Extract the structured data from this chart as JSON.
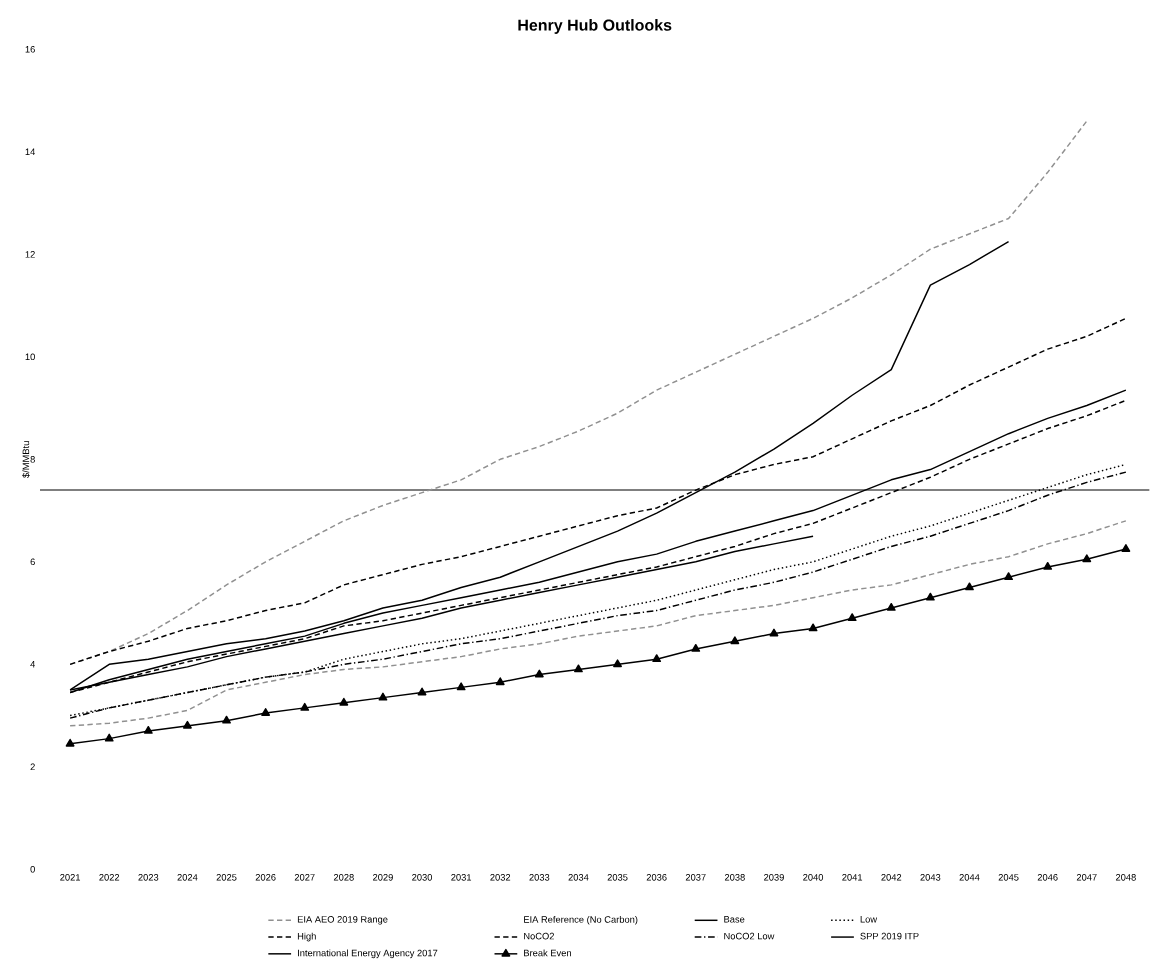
{
  "chart_data": {
    "type": "line",
    "title": "Henry Hub Outlooks",
    "ylabel": "$/MMBtu",
    "categories": [
      "2021",
      "2022",
      "2023",
      "2024",
      "2025",
      "2026",
      "2027",
      "2028",
      "2029",
      "2030",
      "2031",
      "2032",
      "2033",
      "2034",
      "2035",
      "2036",
      "2037",
      "2038",
      "2039",
      "2040",
      "2041",
      "2042",
      "2043",
      "2044",
      "2045",
      "2046",
      "2047",
      "2048"
    ],
    "ylim": [
      0,
      16
    ],
    "yticks": [
      0,
      2,
      4,
      6,
      8,
      10,
      12,
      14,
      16
    ],
    "grid": false,
    "legend": "bottom",
    "marker": "none",
    "ref_lines": [
      {
        "axis": "y",
        "value": 7.4,
        "color": "#000000"
      }
    ],
    "series": [
      {
        "name": "EIA AEO 2019 Range",
        "color": "#909090",
        "line_style": "dashed",
        "values": [
          4.0,
          4.25,
          4.6,
          5.05,
          5.55,
          6.0,
          6.4,
          6.8,
          7.1,
          7.35,
          7.6,
          8.0,
          8.25,
          8.55,
          8.9,
          9.35,
          9.7,
          10.05,
          10.4,
          10.75,
          11.15,
          11.6,
          12.1,
          12.4,
          12.7,
          13.6,
          14.6,
          null
        ]
      },
      {
        "name": "EIA Reference (No Carbon)",
        "values": [
          null,
          null,
          null,
          null,
          null,
          null,
          null,
          null,
          null,
          null,
          null,
          null,
          null,
          null,
          null,
          null,
          null,
          null,
          null,
          null,
          null,
          null,
          null,
          null,
          null,
          null,
          null,
          null
        ]
      },
      {
        "name": "Base",
        "color": "#000000",
        "line_style": "solid",
        "values": [
          3.45,
          3.7,
          3.9,
          4.1,
          4.25,
          4.4,
          4.55,
          4.8,
          5.0,
          5.15,
          5.3,
          5.45,
          5.6,
          5.8,
          6.0,
          6.15,
          6.4,
          6.6,
          6.8,
          7.0,
          7.3,
          7.6,
          7.8,
          8.15,
          8.5,
          8.8,
          9.05,
          9.35
        ]
      },
      {
        "name": "Low",
        "color": "#000000",
        "line_style": "dotted",
        "values": [
          3.0,
          3.15,
          3.3,
          3.45,
          3.6,
          3.75,
          3.85,
          4.1,
          4.25,
          4.4,
          4.5,
          4.65,
          4.8,
          4.95,
          5.1,
          5.25,
          5.45,
          5.65,
          5.85,
          6.0,
          6.25,
          6.5,
          6.7,
          6.95,
          7.2,
          7.45,
          7.7,
          7.9
        ]
      },
      {
        "name": "High",
        "color": "#000000",
        "line_style": "dashed",
        "values": [
          4.0,
          4.25,
          4.45,
          4.7,
          4.85,
          5.05,
          5.2,
          5.55,
          5.75,
          5.95,
          6.1,
          6.3,
          6.5,
          6.7,
          6.9,
          7.05,
          7.4,
          7.7,
          7.9,
          8.05,
          8.4,
          8.75,
          9.05,
          9.45,
          9.8,
          10.15,
          10.4,
          10.75
        ]
      },
      {
        "name": "NoCO2",
        "color": "#000000",
        "line_style": "dashed",
        "values": [
          3.45,
          3.65,
          3.85,
          4.05,
          4.2,
          4.35,
          4.5,
          4.75,
          4.85,
          5.0,
          5.15,
          5.3,
          5.45,
          5.6,
          5.75,
          5.9,
          6.1,
          6.3,
          6.55,
          6.75,
          7.05,
          7.35,
          7.65,
          8.0,
          8.3,
          8.6,
          8.85,
          9.15
        ]
      },
      {
        "name": "NoCO2 Low",
        "color": "#000000",
        "line_style": "dashdot",
        "values": [
          2.95,
          3.15,
          3.3,
          3.45,
          3.6,
          3.75,
          3.85,
          4.0,
          4.1,
          4.25,
          4.4,
          4.5,
          4.65,
          4.8,
          4.95,
          5.05,
          5.25,
          5.45,
          5.6,
          5.8,
          6.05,
          6.3,
          6.5,
          6.75,
          7.0,
          7.3,
          7.55,
          7.75
        ]
      },
      {
        "name": "SPP 2019 ITP",
        "color": "#000000",
        "line_style": "solid",
        "values": [
          3.5,
          4.0,
          4.1,
          4.25,
          4.4,
          4.5,
          4.65,
          4.85,
          5.1,
          5.25,
          5.5,
          5.7,
          6.0,
          6.3,
          6.6,
          6.95,
          7.35,
          7.75,
          8.2,
          8.7,
          9.25,
          9.75,
          11.4,
          11.8,
          12.25,
          null,
          null,
          null
        ]
      },
      {
        "name": "International Energy Agency 2017",
        "color": "#000000",
        "line_style": "solid",
        "values": [
          3.5,
          3.65,
          3.8,
          3.95,
          4.15,
          4.3,
          4.45,
          4.6,
          4.75,
          4.9,
          5.1,
          5.25,
          5.4,
          5.55,
          5.7,
          5.85,
          6.0,
          6.2,
          6.35,
          6.5,
          null,
          null,
          null,
          null,
          null,
          null,
          null,
          null
        ]
      },
      {
        "name": "Break Even",
        "color": "#000000",
        "line_style": "solid",
        "marker": "triangle",
        "values": [
          2.45,
          2.55,
          2.7,
          2.8,
          2.9,
          3.05,
          3.15,
          3.25,
          3.35,
          3.45,
          3.55,
          3.65,
          3.8,
          3.9,
          4.0,
          4.1,
          4.3,
          4.45,
          4.6,
          4.7,
          4.9,
          5.1,
          5.3,
          5.5,
          5.7,
          5.9,
          6.05,
          6.25
        ]
      },
      {
        "color": "#909090",
        "line_style": "dashed",
        "values": [
          2.8,
          2.85,
          2.95,
          3.1,
          3.5,
          3.65,
          3.8,
          3.9,
          3.95,
          4.05,
          4.15,
          4.3,
          4.4,
          4.55,
          4.65,
          4.75,
          4.95,
          5.05,
          5.15,
          5.3,
          5.45,
          5.55,
          5.75,
          5.95,
          6.1,
          6.35,
          6.55,
          6.8
        ]
      }
    ]
  }
}
